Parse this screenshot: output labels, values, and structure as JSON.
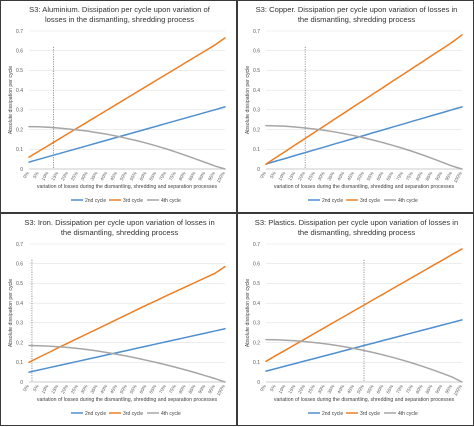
{
  "colors": {
    "2nd": "#4f8fd0",
    "3rd": "#ef7d22",
    "4th": "#a6a6a6",
    "marker": "#7f7f7f"
  },
  "chart_data": [
    {
      "type": "line",
      "title": "S3: Aluminium. Dissipation per cycle upon variation of\nlosses in the dismantling, shredding process",
      "xlabel": "variation of losses during the dismantling, shredding and separation processes",
      "ylabel": "Absolute dissipation per cycle",
      "ylim": [
        0,
        0.7
      ],
      "yticks": [
        "0",
        "0.1",
        "0.2",
        "0.3",
        "0.4",
        "0.5",
        "0.6",
        "0.7"
      ],
      "categories": [
        "0%",
        "5%",
        "10%",
        "15%",
        "20%",
        "25%",
        "30%",
        "35%",
        "40%",
        "45%",
        "50%",
        "55%",
        "60%",
        "65%",
        "70%",
        "75%",
        "80%",
        "85%",
        "90%",
        "95%",
        "100%"
      ],
      "marker_x": 2.5,
      "legend": "bottom",
      "series": [
        {
          "name": "2nd cycle",
          "values": [
            0.035,
            0.049,
            0.063,
            0.077,
            0.091,
            0.105,
            0.119,
            0.133,
            0.147,
            0.161,
            0.175,
            0.189,
            0.203,
            0.217,
            0.231,
            0.245,
            0.259,
            0.273,
            0.287,
            0.301,
            0.315
          ]
        },
        {
          "name": "3rd cycle",
          "values": [
            0.06,
            0.09,
            0.12,
            0.15,
            0.18,
            0.21,
            0.24,
            0.27,
            0.3,
            0.33,
            0.36,
            0.39,
            0.42,
            0.45,
            0.48,
            0.51,
            0.54,
            0.57,
            0.6,
            0.63,
            0.665
          ]
        },
        {
          "name": "4th cycle",
          "values": [
            0.215,
            0.214,
            0.212,
            0.208,
            0.203,
            0.198,
            0.192,
            0.184,
            0.176,
            0.166,
            0.155,
            0.144,
            0.131,
            0.117,
            0.102,
            0.086,
            0.069,
            0.051,
            0.033,
            0.015,
            0.0
          ]
        }
      ]
    },
    {
      "type": "line",
      "title": "S3: Copper. Dissipation per cycle upon variation of losses in\nthe dismantling, shredding process",
      "xlabel": "variation of losses during the dismantling, shredding and separation processes",
      "ylabel": "Absolute dissipation per cycle",
      "ylim": [
        0,
        0.7
      ],
      "yticks": [
        "0",
        "0.1",
        "0.2",
        "0.3",
        "0.4",
        "0.5",
        "0.6",
        "0.7"
      ],
      "categories": [
        "0%",
        "5%",
        "10%",
        "15%",
        "20%",
        "25%",
        "30%",
        "35%",
        "40%",
        "45%",
        "50%",
        "55%",
        "60%",
        "65%",
        "70%",
        "75%",
        "80%",
        "85%",
        "90%",
        "95%",
        "100%"
      ],
      "marker_x": 4,
      "legend": "bottom",
      "series": [
        {
          "name": "2nd cycle",
          "values": [
            0.025,
            0.04,
            0.054,
            0.069,
            0.083,
            0.098,
            0.112,
            0.127,
            0.141,
            0.156,
            0.17,
            0.185,
            0.199,
            0.214,
            0.228,
            0.243,
            0.257,
            0.272,
            0.286,
            0.301,
            0.315
          ]
        },
        {
          "name": "3rd cycle",
          "values": [
            0.025,
            0.058,
            0.09,
            0.123,
            0.155,
            0.188,
            0.22,
            0.253,
            0.285,
            0.318,
            0.35,
            0.383,
            0.415,
            0.448,
            0.48,
            0.513,
            0.545,
            0.578,
            0.61,
            0.643,
            0.68
          ]
        },
        {
          "name": "4th cycle",
          "values": [
            0.22,
            0.219,
            0.217,
            0.213,
            0.208,
            0.202,
            0.196,
            0.188,
            0.179,
            0.169,
            0.158,
            0.146,
            0.133,
            0.119,
            0.104,
            0.088,
            0.071,
            0.053,
            0.034,
            0.015,
            0.0
          ]
        }
      ]
    },
    {
      "type": "line",
      "title": "S3: Iron. Dissipation per cycle upon variation of losses in\nthe dismantling, shredding process",
      "xlabel": "variation of losses during the dismantling, shredding and separation processes",
      "ylabel": "Absolute dissipation per cycle",
      "ylim": [
        0,
        0.7
      ],
      "yticks": [
        "0",
        "0.1",
        "0.2",
        "0.3",
        "0.4",
        "0.5",
        "0.6",
        "0.7"
      ],
      "categories": [
        "0%",
        "5%",
        "10%",
        "15%",
        "20%",
        "25%",
        "30%",
        "35%",
        "40%",
        "45%",
        "50%",
        "55%",
        "60%",
        "65%",
        "70%",
        "75%",
        "80%",
        "85%",
        "90%",
        "95%",
        "100%"
      ],
      "marker_x": 0.3,
      "legend": "bottom",
      "series": [
        {
          "name": "2nd cycle",
          "values": [
            0.05,
            0.061,
            0.072,
            0.083,
            0.094,
            0.105,
            0.116,
            0.127,
            0.138,
            0.149,
            0.16,
            0.171,
            0.182,
            0.193,
            0.204,
            0.215,
            0.226,
            0.237,
            0.248,
            0.259,
            0.27
          ]
        },
        {
          "name": "3rd cycle",
          "values": [
            0.1,
            0.125,
            0.149,
            0.174,
            0.198,
            0.222,
            0.246,
            0.27,
            0.294,
            0.318,
            0.342,
            0.366,
            0.39,
            0.413,
            0.437,
            0.46,
            0.483,
            0.506,
            0.529,
            0.552,
            0.585
          ]
        },
        {
          "name": "4th cycle",
          "values": [
            0.185,
            0.184,
            0.182,
            0.179,
            0.175,
            0.17,
            0.164,
            0.157,
            0.149,
            0.14,
            0.131,
            0.121,
            0.11,
            0.099,
            0.087,
            0.074,
            0.061,
            0.047,
            0.032,
            0.017,
            0.0
          ]
        }
      ]
    },
    {
      "type": "line",
      "title": "S3: Plastics. Dissipation per cycle upon variation of losses in\nthe dismantling, shredding process",
      "xlabel": "variation of losses during the dismantling, shredding and separation processes",
      "ylabel": "Absolute dissipation per cycle",
      "ylim": [
        0,
        0.7
      ],
      "yticks": [
        "0",
        "0.1",
        "0.2",
        "0.3",
        "0.4",
        "0.5",
        "0.6",
        "0.7"
      ],
      "categories": [
        "0%",
        "5%",
        "10%",
        "15%",
        "20%",
        "25%",
        "30%",
        "35%",
        "40%",
        "45%",
        "50%",
        "55%",
        "60%",
        "65%",
        "70%",
        "75%",
        "80%",
        "85%",
        "90%",
        "95%",
        "100%"
      ],
      "marker_x": 10,
      "legend": "bottom",
      "series": [
        {
          "name": "2nd cycle",
          "values": [
            0.055,
            0.068,
            0.081,
            0.094,
            0.107,
            0.12,
            0.133,
            0.146,
            0.159,
            0.172,
            0.185,
            0.198,
            0.211,
            0.224,
            0.237,
            0.25,
            0.263,
            0.276,
            0.289,
            0.302,
            0.315
          ]
        },
        {
          "name": "3rd cycle",
          "values": [
            0.105,
            0.134,
            0.162,
            0.191,
            0.219,
            0.248,
            0.276,
            0.305,
            0.333,
            0.362,
            0.39,
            0.419,
            0.447,
            0.476,
            0.504,
            0.533,
            0.561,
            0.59,
            0.618,
            0.647,
            0.675
          ]
        },
        {
          "name": "4th cycle",
          "values": [
            0.215,
            0.214,
            0.212,
            0.209,
            0.205,
            0.2,
            0.194,
            0.187,
            0.179,
            0.17,
            0.16,
            0.149,
            0.137,
            0.124,
            0.11,
            0.095,
            0.079,
            0.062,
            0.044,
            0.025,
            0.0
          ]
        }
      ]
    }
  ]
}
